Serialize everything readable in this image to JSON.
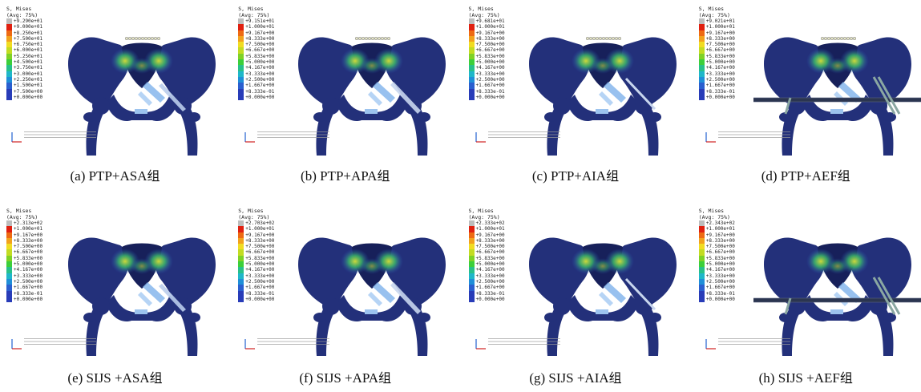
{
  "legend_header": "S, Mises",
  "legend_avg": "(Avg: 75%)",
  "palette": [
    "#bdbdbd",
    "#e02010",
    "#ee6a12",
    "#f2a21c",
    "#f1dc22",
    "#c3dc22",
    "#7fd226",
    "#3ccf3a",
    "#27c08a",
    "#1fb7c9",
    "#1f8fd8",
    "#2a5fcf",
    "#283cb8"
  ],
  "panels": [
    {
      "id": "a",
      "caption_latin": "(a) PTP+ASA",
      "caption_cn": "组",
      "fixation": "ASA",
      "legend_values": [
        "+9.290e+01",
        "+9.000e+01",
        "+8.250e+01",
        "+7.500e+01",
        "+6.750e+01",
        "+6.000e+01",
        "+5.250e+01",
        "+4.500e+01",
        "+3.750e+01",
        "+3.000e+01",
        "+2.250e+01",
        "+1.500e+01",
        "+7.500e+00",
        "+0.000e+00"
      ]
    },
    {
      "id": "b",
      "caption_latin": "(b) PTP+APA",
      "caption_cn": "组",
      "fixation": "APA",
      "legend_values": [
        "+9.151e+01",
        "+1.000e+01",
        "+9.167e+00",
        "+8.333e+00",
        "+7.500e+00",
        "+6.667e+00",
        "+5.833e+00",
        "+5.000e+00",
        "+4.167e+00",
        "+3.333e+00",
        "+2.500e+00",
        "+1.667e+00",
        "+8.333e-01",
        "+0.000e+00"
      ]
    },
    {
      "id": "c",
      "caption_latin": "(c) PTP+AIA",
      "caption_cn": "组",
      "fixation": "AIA",
      "legend_values": [
        "+9.681e+01",
        "+1.000e+01",
        "+9.167e+00",
        "+8.333e+00",
        "+7.500e+00",
        "+6.667e+00",
        "+5.833e+00",
        "+5.000e+00",
        "+4.167e+00",
        "+3.333e+00",
        "+2.500e+00",
        "+1.667e+00",
        "+8.333e-01",
        "+0.000e+00"
      ]
    },
    {
      "id": "d",
      "caption_latin": "(d) PTP+AEF",
      "caption_cn": "组",
      "fixation": "AEF",
      "legend_values": [
        "+9.021e+01",
        "+1.000e+01",
        "+9.167e+00",
        "+8.333e+00",
        "+7.500e+00",
        "+6.667e+00",
        "+5.833e+00",
        "+5.000e+00",
        "+4.167e+00",
        "+3.333e+00",
        "+2.500e+00",
        "+1.667e+00",
        "+8.333e-01",
        "+0.000e+00"
      ]
    },
    {
      "id": "e",
      "caption_latin": "(e) SIJS +ASA",
      "caption_cn": "组",
      "fixation": "ASA",
      "legend_values": [
        "+2.313e+02",
        "+1.000e+01",
        "+9.167e+00",
        "+8.333e+00",
        "+7.500e+00",
        "+6.667e+00",
        "+5.833e+00",
        "+5.000e+00",
        "+4.167e+00",
        "+3.333e+00",
        "+2.500e+00",
        "+1.667e+00",
        "+8.333e-01",
        "+0.000e+00"
      ]
    },
    {
      "id": "f",
      "caption_latin": "(f) SIJS +APA",
      "caption_cn": "组",
      "fixation": "APA",
      "legend_values": [
        "+2.703e+02",
        "+1.000e+01",
        "+9.167e+00",
        "+8.333e+00",
        "+7.500e+00",
        "+6.667e+00",
        "+5.833e+00",
        "+5.000e+00",
        "+4.167e+00",
        "+3.333e+00",
        "+2.500e+00",
        "+1.667e+00",
        "+8.333e-01",
        "+0.000e+00"
      ]
    },
    {
      "id": "g",
      "caption_latin": "(g) SIJS +AIA",
      "caption_cn": "组",
      "fixation": "AIA",
      "legend_values": [
        "+2.333e+02",
        "+1.000e+01",
        "+9.167e+00",
        "+8.333e+00",
        "+7.500e+00",
        "+6.667e+00",
        "+5.833e+00",
        "+5.000e+00",
        "+4.167e+00",
        "+3.333e+00",
        "+2.500e+00",
        "+1.667e+00",
        "+8.333e-01",
        "+0.000e+00"
      ]
    },
    {
      "id": "h",
      "caption_latin": "(h) SIJS +AEF",
      "caption_cn": "组",
      "fixation": "AEF",
      "legend_values": [
        "+2.343e+02",
        "+1.000e+01",
        "+9.167e+00",
        "+8.333e+00",
        "+7.500e+00",
        "+6.667e+00",
        "+5.833e+00",
        "+5.000e+00",
        "+4.167e+00",
        "+3.333e+00",
        "+2.500e+00",
        "+1.667e+00",
        "+8.333e-01",
        "+0.000e+00"
      ]
    }
  ]
}
